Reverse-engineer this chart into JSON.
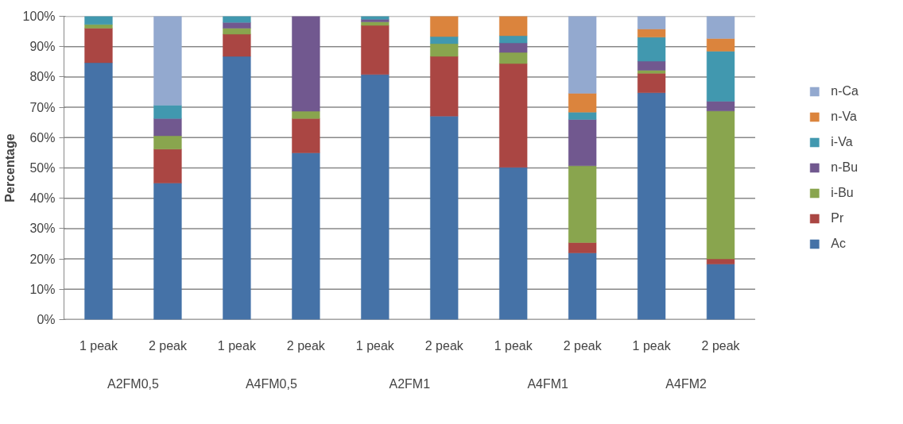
{
  "chart_data": {
    "type": "bar",
    "stacked": true,
    "ylabel": "Percentage",
    "categories": [
      "1 peak",
      "2 peak",
      "1 peak",
      "2 peak",
      "1 peak",
      "2 peak",
      "1 peak",
      "2 peak",
      "1 peak",
      "2 peak"
    ],
    "annotations": [
      "A2FM0,5",
      "A4FM0,5",
      "A2FM1",
      "A4FM1",
      "A4FM2"
    ],
    "series": [
      {
        "name": "Ac",
        "color": "#4572a7",
        "values": [
          84.7,
          45.0,
          86.8,
          55.0,
          80.8,
          67.1,
          50.2,
          22.0,
          74.8,
          18.3
        ]
      },
      {
        "name": "Pr",
        "color": "#aa4643",
        "values": [
          11.4,
          11.2,
          7.3,
          11.3,
          16.2,
          19.7,
          34.2,
          3.4,
          6.4,
          1.7
        ]
      },
      {
        "name": "i-Bu",
        "color": "#89a54e",
        "values": [
          1.2,
          4.4,
          2.0,
          2.4,
          1.2,
          4.2,
          3.7,
          25.3,
          1.0,
          48.8
        ]
      },
      {
        "name": "n-Bu",
        "color": "#71588f",
        "values": [
          0,
          5.7,
          1.9,
          31.3,
          0.8,
          0,
          3.1,
          15.3,
          3.0,
          3.2
        ]
      },
      {
        "name": "i-Va",
        "color": "#4198af",
        "values": [
          2.7,
          4.4,
          2.0,
          0,
          1.0,
          2.3,
          2.4,
          2.4,
          7.9,
          16.5
        ]
      },
      {
        "name": "n-Va",
        "color": "#db843d",
        "values": [
          0,
          0,
          0,
          0,
          0,
          6.7,
          6.4,
          6.2,
          2.7,
          4.2
        ]
      },
      {
        "name": "n-Ca",
        "color": "#93a9cf",
        "values": [
          0,
          29.3,
          0,
          0,
          0,
          0,
          0,
          25.4,
          4.2,
          7.3
        ]
      }
    ],
    "ylim": [
      0,
      100
    ],
    "yticks": [
      {
        "value": 0,
        "label": "0%"
      },
      {
        "value": 10,
        "label": "10%"
      },
      {
        "value": 20,
        "label": "20%"
      },
      {
        "value": 30,
        "label": "30%"
      },
      {
        "value": 40,
        "label": "40%"
      },
      {
        "value": 50,
        "label": "50%"
      },
      {
        "value": 60,
        "label": "60%"
      },
      {
        "value": 70,
        "label": "70%"
      },
      {
        "value": 80,
        "label": "80%"
      },
      {
        "value": 90,
        "label": "90%"
      },
      {
        "value": 100,
        "label": "100%"
      }
    ],
    "grid": "y",
    "legend": "right"
  }
}
